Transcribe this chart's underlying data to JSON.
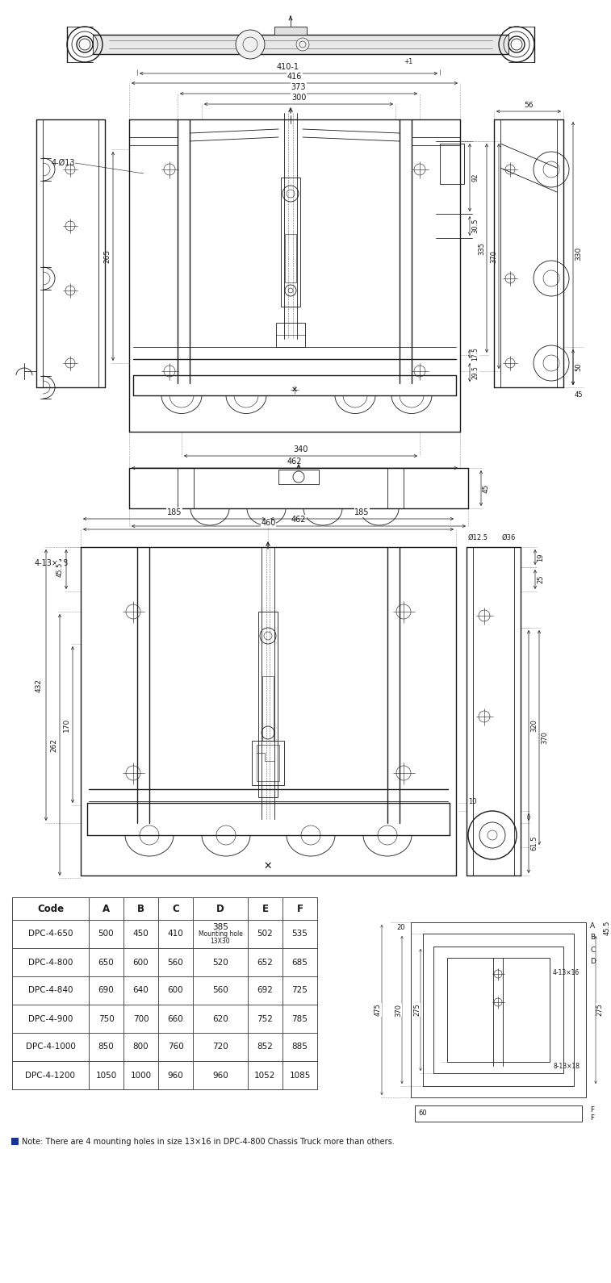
{
  "bg_color": "#ffffff",
  "line_color": "#1a1a1a",
  "dim_color": "#1a1a1a",
  "table_border": "#555555",
  "note_color": "#1a3399",
  "table_data": {
    "headers": [
      "Code",
      "A",
      "B",
      "C",
      "D",
      "E",
      "F"
    ],
    "rows": [
      [
        "DPC-4-650",
        "500",
        "450",
        "410",
        "385\nMounting hole\n13X30",
        "502",
        "535"
      ],
      [
        "DPC-4-800",
        "650",
        "600",
        "560",
        "520",
        "652",
        "685"
      ],
      [
        "DPC-4-840",
        "690",
        "640",
        "600",
        "560",
        "692",
        "725"
      ],
      [
        "DPC-4-900",
        "750",
        "700",
        "660",
        "620",
        "752",
        "785"
      ],
      [
        "DPC-4-1000",
        "850",
        "800",
        "760",
        "720",
        "852",
        "885"
      ],
      [
        "DPC-4-1200",
        "1050",
        "1000",
        "960",
        "960",
        "1052",
        "1085"
      ]
    ]
  },
  "note_text": "Note: There are 4 mounting holes in size 13×16 in DPC-4-800 Chassis Truck more than others."
}
